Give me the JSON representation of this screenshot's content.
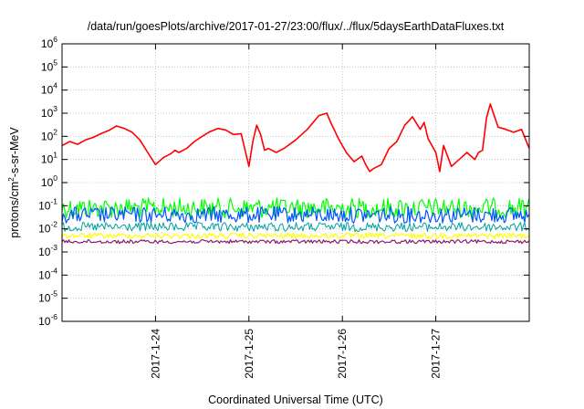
{
  "chart_data": {
    "type": "line",
    "title": "/data/run/goesPlots/archive/2017-01-27/23:00/flux/../flux/5daysEarthDataFluxes.txt",
    "xlabel": "Coordinated Universal Time (UTC)",
    "ylabel_parts": {
      "base": "protons/cm",
      "sup": "2",
      "rest": "-s-sr-MeV"
    },
    "y_scale": "log",
    "ylim": [
      1e-06,
      1000000.0
    ],
    "xlim": [
      "2017-01-23T00:00",
      "2017-01-28T00:00"
    ],
    "grid": true,
    "legend": "none",
    "y_ticks": [
      {
        "value": 1e-06,
        "base": "10",
        "exp": "-6"
      },
      {
        "value": 1e-05,
        "base": "10",
        "exp": "-5"
      },
      {
        "value": 0.0001,
        "base": "10",
        "exp": "-4"
      },
      {
        "value": 0.001,
        "base": "10",
        "exp": "-3"
      },
      {
        "value": 0.01,
        "base": "10",
        "exp": "-2"
      },
      {
        "value": 0.1,
        "base": "10",
        "exp": "-1"
      },
      {
        "value": 1.0,
        "base": "10",
        "exp": "0"
      },
      {
        "value": 10.0,
        "base": "10",
        "exp": "1"
      },
      {
        "value": 100.0,
        "base": "10",
        "exp": "2"
      },
      {
        "value": 1000.0,
        "base": "10",
        "exp": "3"
      },
      {
        "value": 10000.0,
        "base": "10",
        "exp": "4"
      },
      {
        "value": 100000.0,
        "base": "10",
        "exp": "5"
      },
      {
        "value": 1000000.0,
        "base": "10",
        "exp": "6"
      }
    ],
    "x_ticks": [
      {
        "value": "2017-01-24T00:00",
        "label": "2017-1-24"
      },
      {
        "value": "2017-01-25T00:00",
        "label": "2017-1-25"
      },
      {
        "value": "2017-01-26T00:00",
        "label": "2017-1-26"
      },
      {
        "value": "2017-01-27T00:00",
        "label": "2017-1-27"
      }
    ],
    "series": [
      {
        "color": "#ff0000",
        "width": 1.6,
        "x": [
          "2017-01-23T00:00",
          "2017-01-23T02:00",
          "2017-01-23T04:00",
          "2017-01-23T06:00",
          "2017-01-23T08:00",
          "2017-01-23T10:00",
          "2017-01-23T12:00",
          "2017-01-23T14:00",
          "2017-01-23T16:00",
          "2017-01-23T18:00",
          "2017-01-23T20:00",
          "2017-01-23T22:00",
          "2017-01-24T00:00",
          "2017-01-24T02:00",
          "2017-01-24T04:00",
          "2017-01-24T05:00",
          "2017-01-24T06:00",
          "2017-01-24T08:00",
          "2017-01-24T10:00",
          "2017-01-24T12:00",
          "2017-01-24T14:00",
          "2017-01-24T16:00",
          "2017-01-24T18:00",
          "2017-01-24T20:00",
          "2017-01-24T22:00",
          "2017-01-25T00:00",
          "2017-01-25T01:00",
          "2017-01-25T02:00",
          "2017-01-25T03:00",
          "2017-01-25T04:00",
          "2017-01-25T05:00",
          "2017-01-25T07:00",
          "2017-01-25T09:00",
          "2017-01-25T12:00",
          "2017-01-25T15:00",
          "2017-01-25T18:00",
          "2017-01-25T20:00",
          "2017-01-25T21:00",
          "2017-01-25T23:00",
          "2017-01-26T01:00",
          "2017-01-26T03:00",
          "2017-01-26T05:00",
          "2017-01-26T06:00",
          "2017-01-26T07:00",
          "2017-01-26T08:00",
          "2017-01-26T10:00",
          "2017-01-26T12:00",
          "2017-01-26T14:00",
          "2017-01-26T16:00",
          "2017-01-26T17:00",
          "2017-01-26T18:00",
          "2017-01-26T20:00",
          "2017-01-26T21:00",
          "2017-01-26T22:00",
          "2017-01-27T00:00",
          "2017-01-27T01:00",
          "2017-01-27T02:00",
          "2017-01-27T04:00",
          "2017-01-27T06:00",
          "2017-01-27T08:00",
          "2017-01-27T10:00",
          "2017-01-27T11:00",
          "2017-01-27T12:00",
          "2017-01-27T13:00",
          "2017-01-27T14:00",
          "2017-01-27T16:00",
          "2017-01-27T18:00",
          "2017-01-27T20:00",
          "2017-01-27T22:00",
          "2017-01-28T00:00"
        ],
        "y": [
          40,
          60,
          45,
          70,
          90,
          130,
          180,
          280,
          220,
          150,
          70,
          20,
          6,
          12,
          18,
          25,
          20,
          30,
          60,
          100,
          160,
          220,
          190,
          120,
          130,
          5,
          60,
          300,
          120,
          25,
          30,
          20,
          30,
          70,
          200,
          800,
          1000,
          400,
          80,
          20,
          8,
          14,
          6,
          3,
          4,
          6,
          30,
          60,
          300,
          450,
          700,
          200,
          400,
          80,
          20,
          3,
          40,
          5,
          10,
          20,
          10,
          20,
          25,
          600,
          2500,
          250,
          200,
          150,
          200,
          30
        ]
      },
      {
        "color": "#00ff00",
        "width": 1.2,
        "jitter": true,
        "x": [
          "2017-01-23T00:00",
          "2017-01-28T00:00"
        ],
        "y": [
          0.08,
          0.08
        ]
      },
      {
        "color": "#0055ff",
        "width": 1.2,
        "jitter": true,
        "x": [
          "2017-01-23T00:00",
          "2017-01-28T00:00"
        ],
        "y": [
          0.04,
          0.04
        ]
      },
      {
        "color": "#00a0a0",
        "width": 1.0,
        "jitter": true,
        "x": [
          "2017-01-23T00:00",
          "2017-01-28T00:00"
        ],
        "y": [
          0.012,
          0.012
        ]
      },
      {
        "color": "#ffff00",
        "width": 1.2,
        "jitter": true,
        "x": [
          "2017-01-23T00:00",
          "2017-01-28T00:00"
        ],
        "y": [
          0.005,
          0.005
        ]
      },
      {
        "color": "#8b1a6b",
        "width": 1.2,
        "jitter": true,
        "x": [
          "2017-01-23T00:00",
          "2017-01-28T00:00"
        ],
        "y": [
          0.0028,
          0.0028
        ]
      }
    ]
  }
}
